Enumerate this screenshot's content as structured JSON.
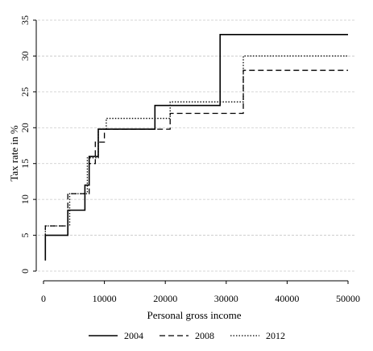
{
  "chart_data": {
    "type": "line",
    "step": true,
    "xlabel": "Personal gross income",
    "ylabel": "Tax rate in %",
    "xlim": [
      0,
      50000
    ],
    "ylim": [
      0,
      35
    ],
    "x_ticks": [
      0,
      10000,
      20000,
      30000,
      40000,
      50000
    ],
    "y_ticks": [
      0,
      5,
      10,
      15,
      20,
      25,
      30,
      35
    ],
    "grid": "horizontal",
    "legend_position": "bottom",
    "series": [
      {
        "name": "2004",
        "style": "solid",
        "color": "#000000",
        "points": [
          [
            300,
            1.5
          ],
          [
            300,
            5.0
          ],
          [
            4000,
            5.0
          ],
          [
            4000,
            8.5
          ],
          [
            6800,
            8.5
          ],
          [
            6800,
            12.0
          ],
          [
            7500,
            12.0
          ],
          [
            7500,
            16.0
          ],
          [
            9000,
            16.0
          ],
          [
            9000,
            19.8
          ],
          [
            18300,
            19.8
          ],
          [
            18300,
            23.1
          ],
          [
            29000,
            23.1
          ],
          [
            29000,
            33.0
          ],
          [
            50000,
            33.0
          ]
        ]
      },
      {
        "name": "2008",
        "style": "dashed",
        "color": "#000000",
        "points": [
          [
            300,
            2.0
          ],
          [
            300,
            6.3
          ],
          [
            4000,
            6.3
          ],
          [
            4000,
            10.8
          ],
          [
            7500,
            10.8
          ],
          [
            7500,
            15.0
          ],
          [
            8500,
            15.0
          ],
          [
            8500,
            18.0
          ],
          [
            10000,
            18.0
          ],
          [
            10000,
            19.8
          ],
          [
            20800,
            19.8
          ],
          [
            20800,
            22.0
          ],
          [
            32800,
            22.0
          ],
          [
            32800,
            28.0
          ],
          [
            50000,
            28.0
          ]
        ]
      },
      {
        "name": "2012",
        "style": "dotted",
        "color": "#000000",
        "points": [
          [
            300,
            1.5
          ],
          [
            300,
            6.3
          ],
          [
            4300,
            6.3
          ],
          [
            4300,
            10.8
          ],
          [
            7200,
            10.8
          ],
          [
            7200,
            15.8
          ],
          [
            9000,
            15.8
          ],
          [
            9000,
            19.8
          ],
          [
            10300,
            19.8
          ],
          [
            10300,
            21.3
          ],
          [
            20800,
            21.3
          ],
          [
            20800,
            23.6
          ],
          [
            32800,
            23.6
          ],
          [
            32800,
            30.0
          ],
          [
            50000,
            30.0
          ]
        ]
      }
    ]
  }
}
